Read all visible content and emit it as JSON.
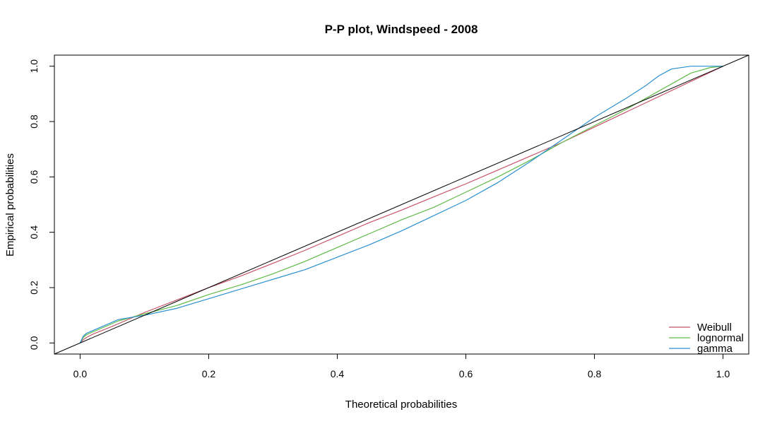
{
  "chart_data": {
    "type": "line",
    "title": "P-P plot, Windspeed - 2008",
    "xlabel": "Theoretical probabilities",
    "ylabel": "Empirical probabilities",
    "xlim": [
      -0.04,
      1.04
    ],
    "ylim": [
      -0.04,
      1.04
    ],
    "x_ticks": [
      "0.0",
      "0.2",
      "0.4",
      "0.6",
      "0.8",
      "1.0"
    ],
    "y_ticks": [
      "0.0",
      "0.2",
      "0.4",
      "0.6",
      "0.8",
      "1.0"
    ],
    "grid": false,
    "legend_position": "bottom-right",
    "reference_line": {
      "from": [
        -0.04,
        -0.04
      ],
      "to": [
        1.04,
        1.04
      ],
      "color": "#000000"
    },
    "series": [
      {
        "name": "Weibull",
        "color": "#C7546B",
        "points": [
          [
            0.0,
            0.0
          ],
          [
            0.005,
            0.012
          ],
          [
            0.01,
            0.02
          ],
          [
            0.02,
            0.032
          ],
          [
            0.05,
            0.06
          ],
          [
            0.1,
            0.11
          ],
          [
            0.15,
            0.155
          ],
          [
            0.2,
            0.2
          ],
          [
            0.25,
            0.242
          ],
          [
            0.3,
            0.288
          ],
          [
            0.35,
            0.335
          ],
          [
            0.4,
            0.385
          ],
          [
            0.45,
            0.435
          ],
          [
            0.5,
            0.48
          ],
          [
            0.55,
            0.528
          ],
          [
            0.6,
            0.575
          ],
          [
            0.65,
            0.625
          ],
          [
            0.7,
            0.675
          ],
          [
            0.75,
            0.725
          ],
          [
            0.8,
            0.78
          ],
          [
            0.85,
            0.835
          ],
          [
            0.9,
            0.89
          ],
          [
            0.95,
            0.945
          ],
          [
            0.98,
            0.978
          ],
          [
            1.0,
            1.0
          ]
        ]
      },
      {
        "name": "lognormal",
        "color": "#5FBA46",
        "points": [
          [
            0.0,
            0.0
          ],
          [
            0.005,
            0.02
          ],
          [
            0.01,
            0.03
          ],
          [
            0.03,
            0.05
          ],
          [
            0.06,
            0.08
          ],
          [
            0.1,
            0.105
          ],
          [
            0.15,
            0.135
          ],
          [
            0.2,
            0.175
          ],
          [
            0.25,
            0.21
          ],
          [
            0.3,
            0.25
          ],
          [
            0.35,
            0.295
          ],
          [
            0.4,
            0.345
          ],
          [
            0.45,
            0.395
          ],
          [
            0.5,
            0.445
          ],
          [
            0.55,
            0.49
          ],
          [
            0.6,
            0.545
          ],
          [
            0.65,
            0.6
          ],
          [
            0.7,
            0.66
          ],
          [
            0.75,
            0.725
          ],
          [
            0.8,
            0.785
          ],
          [
            0.85,
            0.845
          ],
          [
            0.9,
            0.91
          ],
          [
            0.95,
            0.975
          ],
          [
            0.98,
            0.995
          ],
          [
            1.0,
            1.0
          ]
        ]
      },
      {
        "name": "gamma",
        "color": "#2A8FD1",
        "points": [
          [
            0.0,
            0.0
          ],
          [
            0.005,
            0.025
          ],
          [
            0.01,
            0.035
          ],
          [
            0.03,
            0.055
          ],
          [
            0.06,
            0.085
          ],
          [
            0.1,
            0.1
          ],
          [
            0.15,
            0.125
          ],
          [
            0.2,
            0.16
          ],
          [
            0.25,
            0.195
          ],
          [
            0.3,
            0.23
          ],
          [
            0.35,
            0.265
          ],
          [
            0.4,
            0.31
          ],
          [
            0.45,
            0.355
          ],
          [
            0.5,
            0.405
          ],
          [
            0.55,
            0.46
          ],
          [
            0.6,
            0.515
          ],
          [
            0.65,
            0.58
          ],
          [
            0.7,
            0.655
          ],
          [
            0.75,
            0.735
          ],
          [
            0.8,
            0.815
          ],
          [
            0.85,
            0.885
          ],
          [
            0.88,
            0.93
          ],
          [
            0.9,
            0.965
          ],
          [
            0.92,
            0.99
          ],
          [
            0.95,
            1.0
          ],
          [
            1.0,
            1.0
          ]
        ]
      }
    ]
  }
}
